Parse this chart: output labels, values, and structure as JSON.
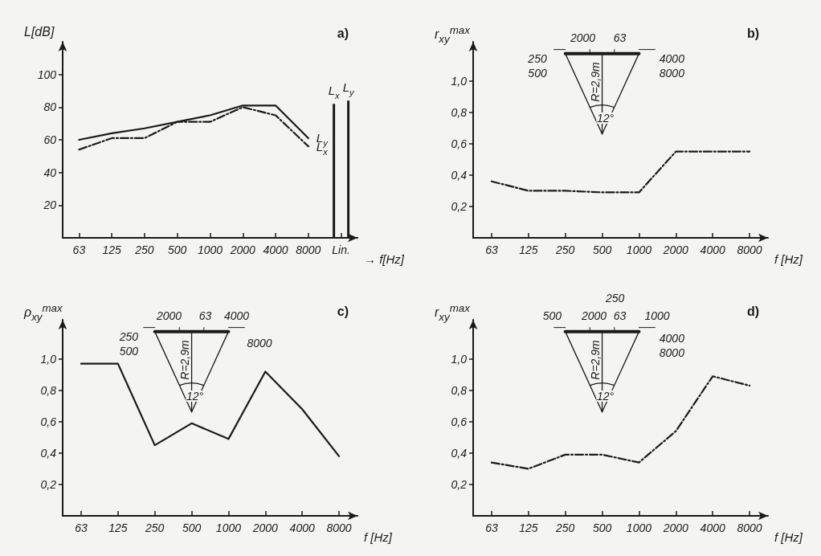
{
  "chart_data": [
    {
      "type": "line",
      "title": "a)",
      "xlabel": "→ f[Hz]",
      "ylabel": "L[dB]",
      "categories": [
        "63",
        "125",
        "250",
        "500",
        "1000",
        "2000",
        "4000",
        "8000",
        "Lin."
      ],
      "ylim": [
        0,
        120
      ],
      "yticks": [
        20,
        40,
        60,
        80,
        100
      ],
      "grid": false,
      "legend": false,
      "marker": "none",
      "series": [
        {
          "name": "L$_{y}$",
          "color": "#1a1a1a",
          "line_style": "solid",
          "values": [
            60,
            64,
            67,
            71,
            75,
            81,
            81,
            61,
            null
          ]
        },
        {
          "name": "L$_{x}$",
          "color": "#1a1a1a",
          "line_style": "dashed",
          "values": [
            54,
            61,
            61,
            71,
            71,
            80,
            75,
            56,
            null
          ]
        },
        {
          "type": "bar",
          "name": "L$_{x}$",
          "color": "#1a1a1a",
          "values": [
            null,
            null,
            null,
            null,
            null,
            null,
            null,
            null,
            82
          ]
        },
        {
          "type": "bar",
          "name": "L$_{y}$",
          "color": "#1a1a1a",
          "values": [
            null,
            null,
            null,
            null,
            null,
            null,
            null,
            null,
            84
          ]
        }
      ]
    },
    {
      "type": "line",
      "title": "b)",
      "xlabel": "f [Hz]",
      "ylabel": "r$_{xy}$$^{max}$",
      "categories": [
        "63",
        "125",
        "250",
        "500",
        "1000",
        "2000",
        "4000",
        "8000"
      ],
      "ylim": [
        0,
        1.25
      ],
      "yticks": [
        {
          "value": 0.2,
          "label": "0,2"
        },
        {
          "value": 0.4,
          "label": "0,4"
        },
        {
          "value": 0.6,
          "label": "0,6"
        },
        {
          "value": 0.8,
          "label": "0,8"
        },
        {
          "value": 1.0,
          "label": "1,0"
        }
      ],
      "grid": false,
      "legend": false,
      "marker": "none",
      "line_style": "dashed",
      "color": "#1a1a1a",
      "values": [
        0.36,
        0.3,
        0.3,
        0.29,
        0.29,
        0.55,
        0.55,
        0.55
      ],
      "annotations": [
        "2000",
        "63",
        "250",
        "500",
        "4000",
        "8000",
        "R=2,9m",
        "12°"
      ]
    },
    {
      "type": "line",
      "title": "c)",
      "xlabel": "f [Hz]",
      "ylabel": "ρ$_{xy}$$^{max}$",
      "categories": [
        "63",
        "125",
        "250",
        "500",
        "1000",
        "2000",
        "4000",
        "8000"
      ],
      "ylim": [
        0,
        1.25
      ],
      "yticks": [
        {
          "value": 0.2,
          "label": "0,2"
        },
        {
          "value": 0.4,
          "label": "0,4"
        },
        {
          "value": 0.6,
          "label": "0,6"
        },
        {
          "value": 0.8,
          "label": "0,8"
        },
        {
          "value": 1.0,
          "label": "1,0"
        }
      ],
      "grid": false,
      "legend": false,
      "marker": "none",
      "line_style": "solid",
      "color": "#1a1a1a",
      "values": [
        0.97,
        0.97,
        0.45,
        0.59,
        0.49,
        0.92,
        0.68,
        0.38
      ],
      "annotations": [
        "2000",
        "63",
        "4000",
        "250",
        "500",
        "8000",
        "R=2,9m",
        "12°"
      ]
    },
    {
      "type": "line",
      "title": "d)",
      "xlabel": "f [Hz]",
      "ylabel": "r$_{xy}$$^{max}$",
      "categories": [
        "63",
        "125",
        "250",
        "500",
        "1000",
        "2000",
        "4000",
        "8000"
      ],
      "ylim": [
        0,
        1.25
      ],
      "yticks": [
        {
          "value": 0.2,
          "label": "0,2"
        },
        {
          "value": 0.4,
          "label": "0,4"
        },
        {
          "value": 0.6,
          "label": "0,6"
        },
        {
          "value": 0.8,
          "label": "0,8"
        },
        {
          "value": 1.0,
          "label": "1,0"
        }
      ],
      "grid": false,
      "legend": false,
      "marker": "none",
      "line_style": "dashed",
      "color": "#1a1a1a",
      "values": [
        0.34,
        0.3,
        0.39,
        0.39,
        0.34,
        0.54,
        0.89,
        0.83
      ],
      "annotations": [
        "250",
        "500",
        "2000",
        "63",
        "1000",
        "4000",
        "8000",
        "R=2,9m",
        "12°"
      ]
    }
  ]
}
